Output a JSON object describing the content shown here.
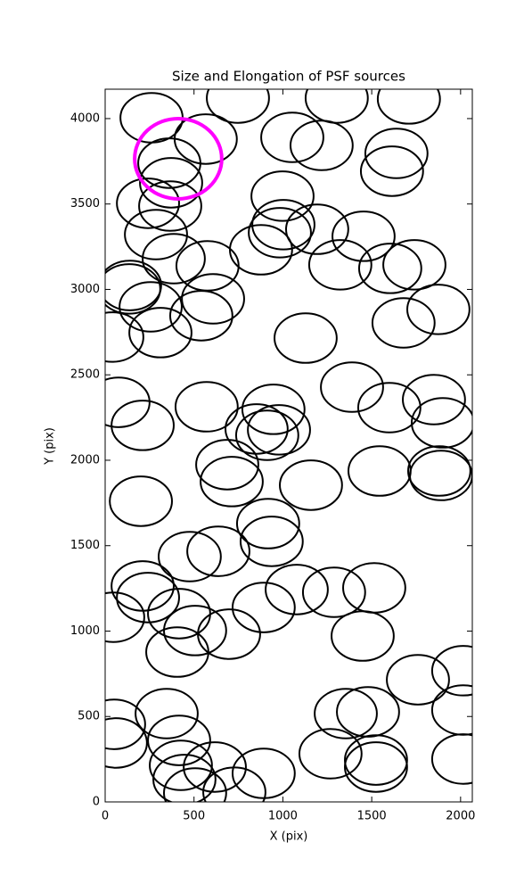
{
  "chart_data": {
    "type": "ellipse",
    "title": "Size and Elongation of PSF sources",
    "xlabel": "X (pix)",
    "ylabel": "Y (pix)",
    "xlim": [
      0,
      2066
    ],
    "ylim": [
      0,
      4172
    ],
    "xticks": [
      0,
      500,
      1000,
      1500,
      2000
    ],
    "yticks": [
      0,
      500,
      1000,
      1500,
      2000,
      2500,
      3000,
      3500,
      4000
    ],
    "x": [
      261,
      747,
      566,
      1053,
      1303,
      1218,
      1709,
      1639,
      1614,
      361,
      371,
      241,
      366,
      998,
      1003,
      983,
      286,
      386,
      576,
      877,
      1193,
      1454,
      1323,
      1604,
      1740,
      1875,
      1679,
      140,
      135,
      256,
      607,
      541,
      40,
      311,
      1128,
      1389,
      1599,
      1850,
      1900,
      75,
      211,
      571,
      947,
      852,
      912,
      978,
      687,
      712,
      1158,
      1544,
      1880,
      1890,
      201,
      917,
      937,
      476,
      637,
      211,
      241,
      45,
      416,
      506,
      406,
      697,
      892,
      1078,
      1288,
      1514,
      1449,
      1760,
      2015,
      50,
      346,
      60,
      416,
      1354,
      1479,
      2015,
      426,
      617,
      892,
      1268,
      1524,
      1524,
      2015,
      446,
      506,
      727
    ],
    "y": [
      4005,
      4120,
      3880,
      3890,
      4120,
      3843,
      4115,
      3796,
      3692,
      3739,
      3624,
      3504,
      3488,
      3546,
      3379,
      3332,
      3321,
      3180,
      3138,
      3232,
      3352,
      3311,
      3144,
      3123,
      3144,
      2883,
      2804,
      3023,
      3003,
      2898,
      2945,
      2846,
      2721,
      2747,
      2715,
      2428,
      2308,
      2355,
      2219,
      2339,
      2204,
      2313,
      2298,
      2183,
      2146,
      2178,
      1974,
      1875,
      1854,
      1937,
      1937,
      1911,
      1760,
      1629,
      1525,
      1436,
      1467,
      1264,
      1196,
      1081,
      1102,
      1003,
      877,
      982,
      1138,
      1243,
      1227,
      1253,
      971,
      715,
      768,
      454,
      517,
      345,
      360,
      517,
      527,
      538,
      214,
      204,
      167,
      282,
      245,
      204,
      251,
      131,
      52,
      57
    ],
    "width": 350,
    "height": 290,
    "color": "#000000",
    "highlight": {
      "x": 411,
      "y": 3765,
      "width": 490,
      "height": 470,
      "color": "#ff00ff"
    }
  }
}
